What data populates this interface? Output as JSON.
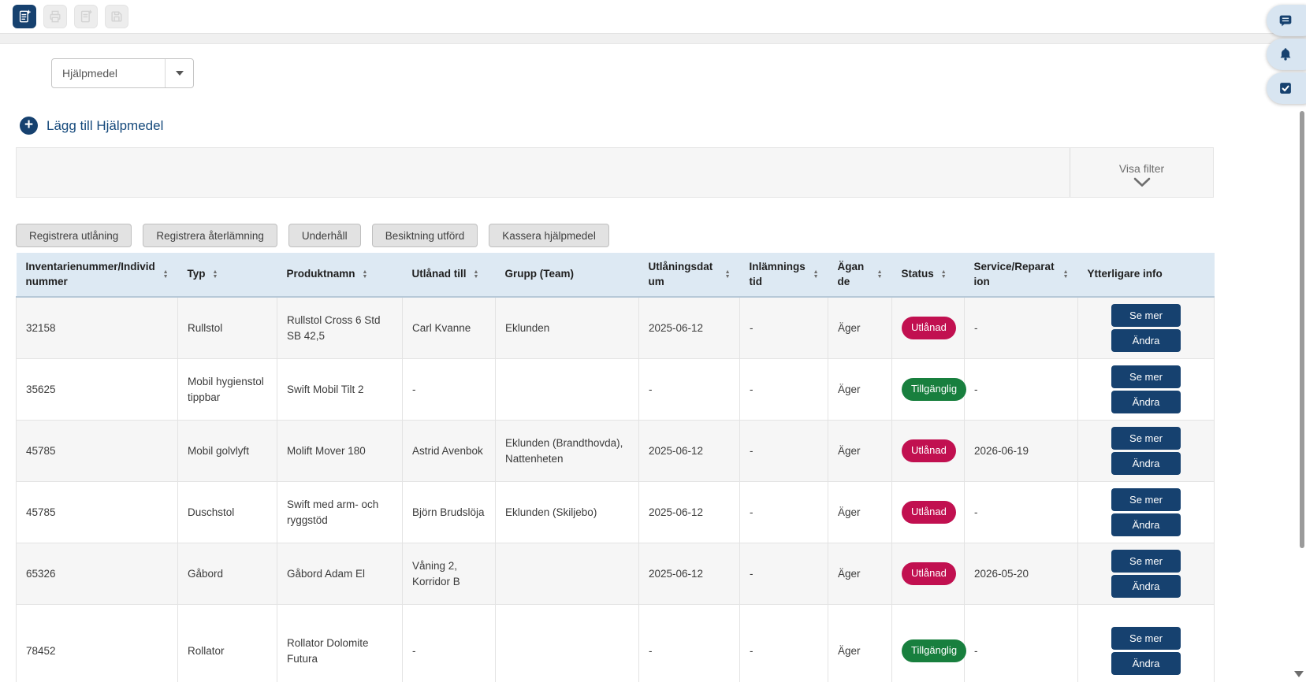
{
  "colors": {
    "accent_navy": "#16416f",
    "table_header_bg": "#dde9f3",
    "status_loaned_red": "#c11050",
    "status_available_green": "#187f3e"
  },
  "toolbar": {
    "icons": [
      {
        "name": "new-document-icon",
        "active": true
      },
      {
        "name": "print-icon",
        "active": false
      },
      {
        "name": "copy-document-icon",
        "active": false
      },
      {
        "name": "save-icon",
        "active": false
      }
    ]
  },
  "floating_buttons": [
    {
      "name": "chat-icon"
    },
    {
      "name": "notifications-bell-icon"
    },
    {
      "name": "tasks-checkbox-icon"
    }
  ],
  "module_select": {
    "value": "Hjälpmedel"
  },
  "add_link": {
    "label": "Lägg till Hjälpmedel"
  },
  "filter": {
    "toggle_label": "Visa filter"
  },
  "actions": [
    {
      "name": "register-loan-button",
      "label": "Registrera utlåning"
    },
    {
      "name": "register-return-button",
      "label": "Registrera återlämning"
    },
    {
      "name": "maintenance-button",
      "label": "Underhåll"
    },
    {
      "name": "inspection-done-button",
      "label": "Besiktning utförd"
    },
    {
      "name": "discard-aid-button",
      "label": "Kassera hjälpmedel"
    }
  ],
  "table": {
    "columns": [
      {
        "key": "inv",
        "label": "Inventarienummer/Individnummer",
        "sortable": true
      },
      {
        "key": "typ",
        "label": "Typ",
        "sortable": true
      },
      {
        "key": "produkt",
        "label": "Produktnamn",
        "sortable": true
      },
      {
        "key": "utlanad_till",
        "label": "Utlånad till",
        "sortable": true
      },
      {
        "key": "grupp",
        "label": "Grupp (Team)",
        "sortable": false
      },
      {
        "key": "datum",
        "label": "Utlåningsdatum",
        "sortable": true
      },
      {
        "key": "inlamning",
        "label": "Inlämningstid",
        "sortable": true
      },
      {
        "key": "agande",
        "label": "Ägande",
        "sortable": true
      },
      {
        "key": "status",
        "label": "Status",
        "sortable": true
      },
      {
        "key": "service",
        "label": "Service/Reparation",
        "sortable": true
      },
      {
        "key": "info",
        "label": "Ytterligare info",
        "sortable": false
      }
    ],
    "row_actions": [
      {
        "name": "see-more-button",
        "label": "Se mer"
      },
      {
        "name": "edit-button",
        "label": "Ändra"
      }
    ],
    "rows": [
      {
        "inv": "32158",
        "typ": "Rullstol",
        "produkt": "Rullstol Cross 6 Std SB 42,5",
        "utlanad_till": "Carl Kvanne",
        "grupp": "Eklunden",
        "datum": "2025-06-12",
        "inlamning": "-",
        "agande": "Äger",
        "status": "Utlånad",
        "status_type": "loaned",
        "service": "-"
      },
      {
        "inv": "35625",
        "typ": "Mobil hygienstol tippbar",
        "produkt": "Swift Mobil Tilt 2",
        "utlanad_till": "-",
        "grupp": "",
        "datum": "-",
        "inlamning": "-",
        "agande": "Äger",
        "status": "Tillgänglig",
        "status_type": "available",
        "service": "-"
      },
      {
        "inv": "45785",
        "typ": "Mobil golvlyft",
        "produkt": "Molift Mover 180",
        "utlanad_till": "Astrid Avenbok",
        "grupp": "Eklunden (Brandthovda), Nattenheten",
        "datum": "2025-06-12",
        "inlamning": "-",
        "agande": "Äger",
        "status": "Utlånad",
        "status_type": "loaned",
        "service": "2026-06-19"
      },
      {
        "inv": "45785",
        "typ": "Duschstol",
        "produkt": "Swift med arm- och ryggstöd",
        "utlanad_till": "Björn Brudslöja",
        "grupp": "Eklunden (Skiljebo)",
        "datum": "2025-06-12",
        "inlamning": "-",
        "agande": "Äger",
        "status": "Utlånad",
        "status_type": "loaned",
        "service": "-"
      },
      {
        "inv": "65326",
        "typ": "Gåbord",
        "produkt": "Gåbord Adam El",
        "utlanad_till": "Våning 2, Korridor B",
        "grupp": "",
        "datum": "2025-06-12",
        "inlamning": "-",
        "agande": "Äger",
        "status": "Utlånad",
        "status_type": "loaned",
        "service": "2026-05-20"
      },
      {
        "inv": "78452",
        "typ": "Rollator",
        "produkt": "Rollator Dolomite Futura",
        "utlanad_till": "-",
        "grupp": "",
        "datum": "-",
        "inlamning": "-",
        "agande": "Äger",
        "status": "Tillgänglig",
        "status_type": "available",
        "service": "-"
      }
    ]
  }
}
